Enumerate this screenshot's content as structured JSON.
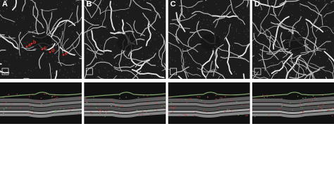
{
  "panels": [
    {
      "label": "A",
      "annotations": [
        "a",
        "b",
        "c",
        "d",
        "e"
      ]
    },
    {
      "label": "B"
    },
    {
      "label": "C"
    },
    {
      "label": "D"
    }
  ]
}
